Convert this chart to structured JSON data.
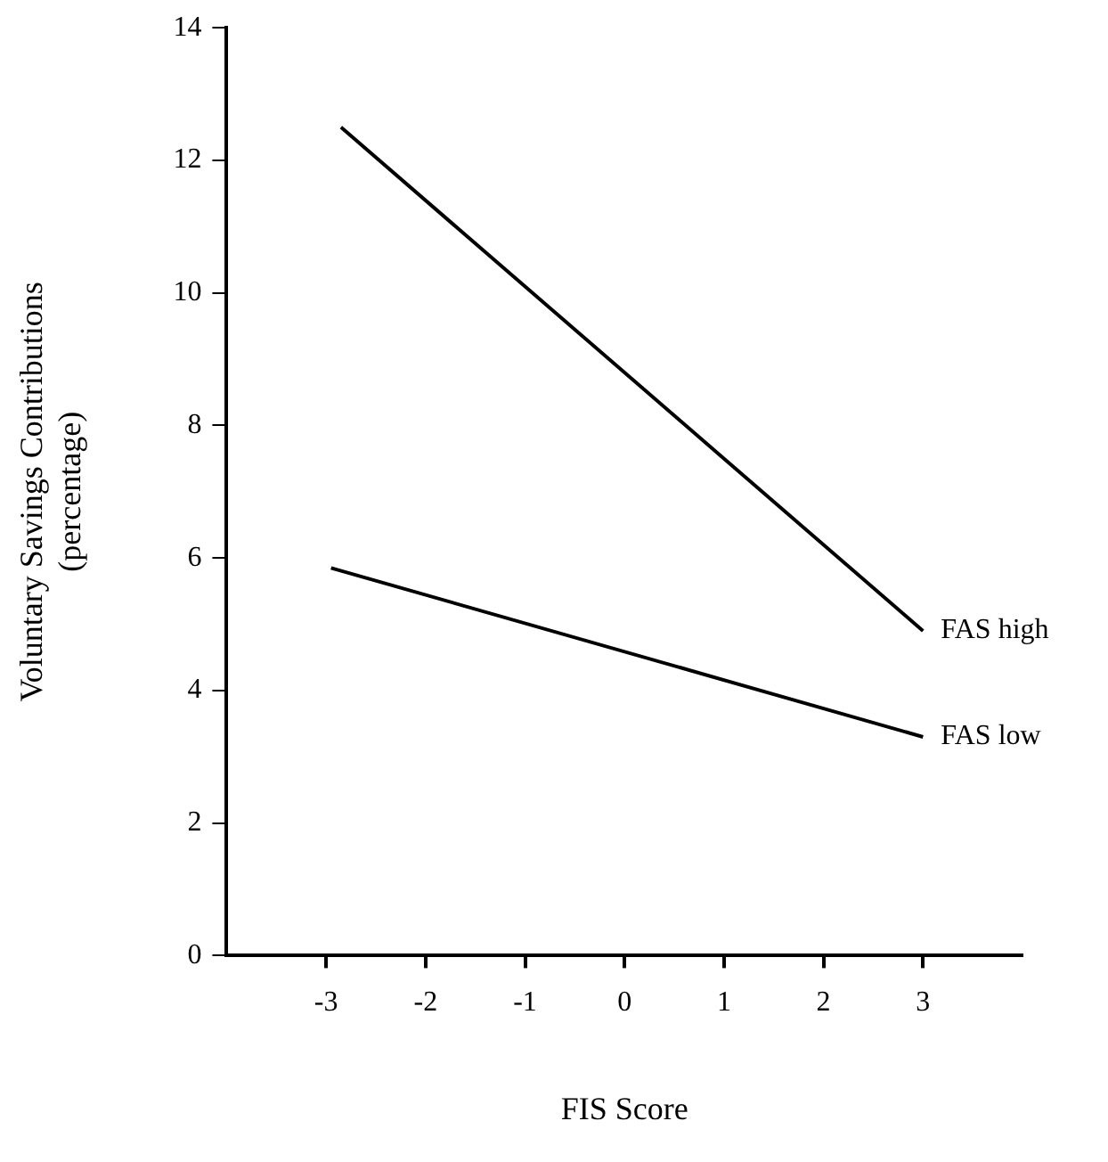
{
  "chart_data": {
    "type": "line",
    "xlabel": "FIS Score",
    "ylabel": "Voluntary Savings Contributions\n(percentage)",
    "xlim": [
      -4,
      4
    ],
    "xticks": [
      -3,
      -2,
      -1,
      0,
      1,
      2,
      3
    ],
    "ylim": [
      0,
      14
    ],
    "yticks": [
      0,
      2,
      4,
      6,
      8,
      10,
      12,
      14
    ],
    "grid": false,
    "legend": false,
    "marker": "none",
    "line_style": "solid",
    "series": [
      {
        "name": "FAS high",
        "color": "#000000",
        "x": [
          -2.85,
          3
        ],
        "values": [
          12.5,
          4.9
        ]
      },
      {
        "name": "FAS low",
        "color": "#000000",
        "x": [
          -2.95,
          3
        ],
        "values": [
          5.85,
          3.3
        ]
      }
    ]
  }
}
